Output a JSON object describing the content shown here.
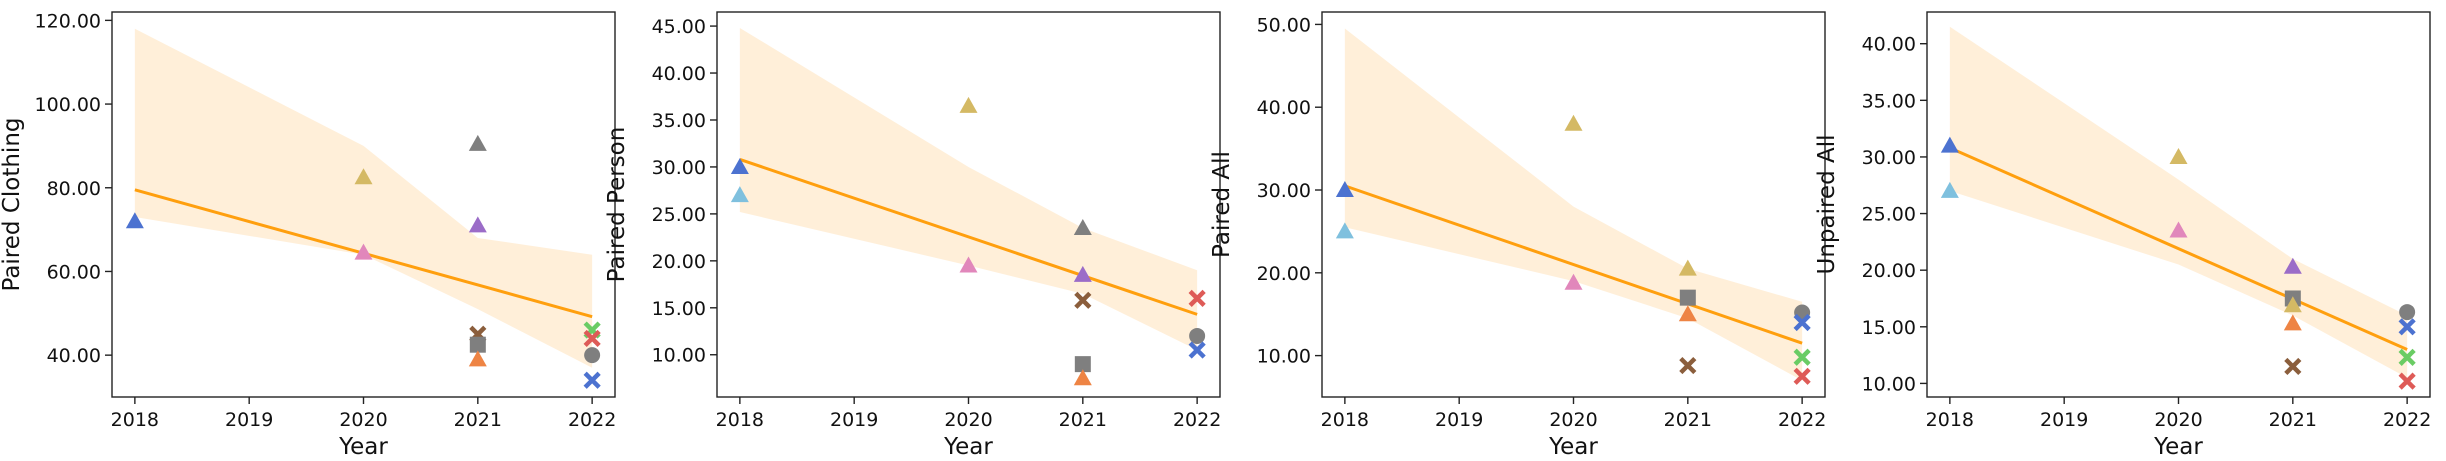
{
  "colors": {
    "band": "#ffe7c4",
    "fit": "#ff9f0e",
    "palette": {
      "blue": "#4c72d0",
      "lightblue": "#7fc0de",
      "gold": "#d4b964",
      "pink": "#e187bb",
      "gray": "#7f7f7f",
      "purple": "#9b6cc8",
      "brown": "#8b5e3c",
      "orange": "#ee8444",
      "red": "#de5b57",
      "green": "#6acc64"
    }
  },
  "chart_data": [
    {
      "type": "scatter",
      "xlabel": "Year",
      "ylabel": "Paired Clothing",
      "x_ticks": [
        2018,
        2019,
        2020,
        2021,
        2022
      ],
      "y_ticks": [
        40.0,
        60.0,
        80.0,
        100.0,
        120.0
      ],
      "y_tick_labels": [
        "40.00",
        "60.00",
        "80.00",
        "100.00",
        "120.00"
      ],
      "x_tick_labels": [
        "2018",
        "2019",
        "2020",
        "2021",
        "2022"
      ],
      "xlim": [
        2017.8,
        2022.2
      ],
      "ylim": [
        30,
        122
      ],
      "fit": {
        "x": [
          2018,
          2022
        ],
        "y": [
          79.5,
          49.2
        ]
      },
      "band": {
        "x": [
          2018,
          2020,
          2021,
          2022
        ],
        "upper": [
          118,
          90,
          68,
          64
        ],
        "lower": [
          73,
          64,
          51,
          37
        ]
      },
      "points": [
        {
          "x": 2018,
          "y": 72,
          "marker": "triangle",
          "color": "blue"
        },
        {
          "x": 2020,
          "y": 82.5,
          "marker": "triangle",
          "color": "gold"
        },
        {
          "x": 2020,
          "y": 64.5,
          "marker": "triangle",
          "color": "pink"
        },
        {
          "x": 2021,
          "y": 90.5,
          "marker": "triangle",
          "color": "gray"
        },
        {
          "x": 2021,
          "y": 71,
          "marker": "triangle",
          "color": "purple"
        },
        {
          "x": 2021,
          "y": 45,
          "marker": "x",
          "color": "brown"
        },
        {
          "x": 2021,
          "y": 42.5,
          "marker": "square",
          "color": "gray"
        },
        {
          "x": 2021,
          "y": 39,
          "marker": "triangle",
          "color": "orange"
        },
        {
          "x": 2022,
          "y": 46,
          "marker": "x",
          "color": "green"
        },
        {
          "x": 2022,
          "y": 44,
          "marker": "x",
          "color": "red"
        },
        {
          "x": 2022,
          "y": 40,
          "marker": "circle",
          "color": "gray"
        },
        {
          "x": 2022,
          "y": 34,
          "marker": "x",
          "color": "blue"
        }
      ]
    },
    {
      "type": "scatter",
      "xlabel": "Year",
      "ylabel": "Paired Person",
      "x_ticks": [
        2018,
        2019,
        2020,
        2021,
        2022
      ],
      "y_ticks": [
        10,
        15,
        20,
        25,
        30,
        35,
        40,
        45
      ],
      "y_tick_labels": [
        "10.00",
        "15.00",
        "20.00",
        "25.00",
        "30.00",
        "35.00",
        "40.00",
        "45.00"
      ],
      "x_tick_labels": [
        "2018",
        "2019",
        "2020",
        "2021",
        "2022"
      ],
      "xlim": [
        2017.8,
        2022.2
      ],
      "ylim": [
        5.5,
        46.5
      ],
      "fit": {
        "x": [
          2018,
          2022
        ],
        "y": [
          30.8,
          14.3
        ]
      },
      "band": {
        "x": [
          2018,
          2020,
          2021,
          2022
        ],
        "upper": [
          44.8,
          30,
          23.5,
          19
        ],
        "lower": [
          25.2,
          19.5,
          16.5,
          10.5
        ]
      },
      "points": [
        {
          "x": 2018,
          "y": 30,
          "marker": "triangle",
          "color": "blue"
        },
        {
          "x": 2018,
          "y": 27,
          "marker": "triangle",
          "color": "lightblue"
        },
        {
          "x": 2020,
          "y": 36.5,
          "marker": "triangle",
          "color": "gold"
        },
        {
          "x": 2020,
          "y": 19.5,
          "marker": "triangle",
          "color": "pink"
        },
        {
          "x": 2021,
          "y": 23.5,
          "marker": "triangle",
          "color": "gray"
        },
        {
          "x": 2021,
          "y": 18.5,
          "marker": "triangle",
          "color": "purple"
        },
        {
          "x": 2021,
          "y": 15.8,
          "marker": "x",
          "color": "brown"
        },
        {
          "x": 2021,
          "y": 9,
          "marker": "square",
          "color": "gray"
        },
        {
          "x": 2021,
          "y": 7.5,
          "marker": "triangle",
          "color": "orange"
        },
        {
          "x": 2022,
          "y": 16,
          "marker": "x",
          "color": "red"
        },
        {
          "x": 2022,
          "y": 12,
          "marker": "circle",
          "color": "gray"
        },
        {
          "x": 2022,
          "y": 10.5,
          "marker": "x",
          "color": "blue"
        }
      ]
    },
    {
      "type": "scatter",
      "xlabel": "Year",
      "ylabel": "Paired All",
      "x_ticks": [
        2018,
        2019,
        2020,
        2021,
        2022
      ],
      "y_ticks": [
        10,
        20,
        30,
        40,
        50
      ],
      "y_tick_labels": [
        "10.00",
        "20.00",
        "30.00",
        "40.00",
        "50.00"
      ],
      "x_tick_labels": [
        "2018",
        "2019",
        "2020",
        "2021",
        "2022"
      ],
      "xlim": [
        2017.8,
        2022.2
      ],
      "ylim": [
        5,
        51.5
      ],
      "fit": {
        "x": [
          2018,
          2022
        ],
        "y": [
          30.5,
          11.5
        ]
      },
      "band": {
        "x": [
          2018,
          2020,
          2021,
          2022
        ],
        "upper": [
          49.5,
          28,
          20.5,
          16.5
        ],
        "lower": [
          25.5,
          19,
          14.5,
          7
        ]
      },
      "points": [
        {
          "x": 2018,
          "y": 30,
          "marker": "triangle",
          "color": "blue"
        },
        {
          "x": 2018,
          "y": 25,
          "marker": "triangle",
          "color": "lightblue"
        },
        {
          "x": 2020,
          "y": 38,
          "marker": "triangle",
          "color": "gold"
        },
        {
          "x": 2020,
          "y": 18.8,
          "marker": "triangle",
          "color": "pink"
        },
        {
          "x": 2021,
          "y": 20.5,
          "marker": "triangle",
          "color": "gold"
        },
        {
          "x": 2021,
          "y": 17,
          "marker": "square",
          "color": "gray"
        },
        {
          "x": 2021,
          "y": 15,
          "marker": "triangle",
          "color": "orange"
        },
        {
          "x": 2021,
          "y": 8.8,
          "marker": "x",
          "color": "brown"
        },
        {
          "x": 2022,
          "y": 15.2,
          "marker": "circle",
          "color": "gray"
        },
        {
          "x": 2022,
          "y": 14,
          "marker": "x",
          "color": "blue"
        },
        {
          "x": 2022,
          "y": 9.8,
          "marker": "x",
          "color": "green"
        },
        {
          "x": 2022,
          "y": 7.5,
          "marker": "x",
          "color": "red"
        }
      ]
    },
    {
      "type": "scatter",
      "xlabel": "Year",
      "ylabel": "Unpaired All",
      "x_ticks": [
        2018,
        2019,
        2020,
        2021,
        2022
      ],
      "y_ticks": [
        10,
        15,
        20,
        25,
        30,
        35,
        40
      ],
      "y_tick_labels": [
        "10.00",
        "15.00",
        "20.00",
        "25.00",
        "30.00",
        "35.00",
        "40.00"
      ],
      "x_tick_labels": [
        "2018",
        "2019",
        "2020",
        "2021",
        "2022"
      ],
      "xlim": [
        2017.8,
        2022.2
      ],
      "ylim": [
        8.8,
        42.8
      ],
      "fit": {
        "x": [
          2018,
          2022
        ],
        "y": [
          30.8,
          13
        ]
      },
      "band": {
        "x": [
          2018,
          2020,
          2021,
          2022
        ],
        "upper": [
          41.5,
          28,
          21,
          16
        ],
        "lower": [
          27,
          20.5,
          16,
          10.5
        ]
      },
      "points": [
        {
          "x": 2018,
          "y": 31,
          "marker": "triangle",
          "color": "blue"
        },
        {
          "x": 2018,
          "y": 27,
          "marker": "triangle",
          "color": "lightblue"
        },
        {
          "x": 2020,
          "y": 30,
          "marker": "triangle",
          "color": "gold"
        },
        {
          "x": 2020,
          "y": 23.5,
          "marker": "triangle",
          "color": "pink"
        },
        {
          "x": 2021,
          "y": 20.3,
          "marker": "triangle",
          "color": "purple"
        },
        {
          "x": 2021,
          "y": 17.5,
          "marker": "square",
          "color": "gray"
        },
        {
          "x": 2021,
          "y": 16.9,
          "marker": "triangle",
          "color": "gold"
        },
        {
          "x": 2021,
          "y": 15.3,
          "marker": "triangle",
          "color": "orange"
        },
        {
          "x": 2021,
          "y": 11.5,
          "marker": "x",
          "color": "brown"
        },
        {
          "x": 2022,
          "y": 16.3,
          "marker": "circle",
          "color": "gray"
        },
        {
          "x": 2022,
          "y": 15,
          "marker": "x",
          "color": "blue"
        },
        {
          "x": 2022,
          "y": 12.3,
          "marker": "x",
          "color": "green"
        },
        {
          "x": 2022,
          "y": 10.2,
          "marker": "x",
          "color": "red"
        }
      ]
    }
  ]
}
